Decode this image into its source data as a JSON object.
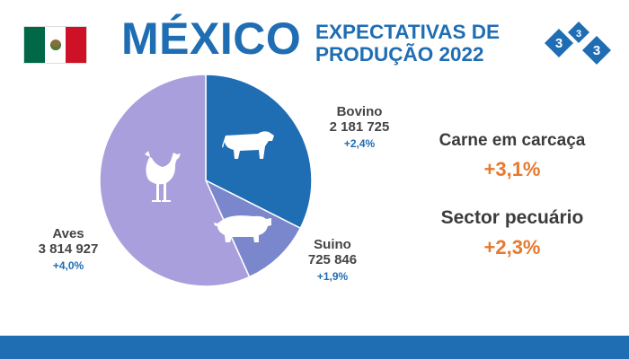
{
  "header": {
    "country": "MÉXICO",
    "subtitle_line1": "EXPECTATIVAS DE",
    "subtitle_line2": "PRODUÇÃO 2022",
    "logo_digits": [
      "3",
      "3",
      "3"
    ]
  },
  "chart_data": {
    "type": "pie",
    "slices": [
      {
        "name": "Bovino",
        "value": 2181725,
        "value_label": "2 181 725",
        "change": "+2,4%",
        "color": "#1f6db3",
        "icon": "cow-icon"
      },
      {
        "name": "Suino",
        "value": 725846,
        "value_label": "725 846",
        "change": "+1,9%",
        "color": "#7b87cc",
        "icon": "pig-icon"
      },
      {
        "name": "Aves",
        "value": 3814927,
        "value_label": "3 814 927",
        "change": "+4,0%",
        "color": "#a99fdc",
        "icon": "chicken-icon"
      }
    ]
  },
  "kpis": [
    {
      "title": "Carne em carcaça",
      "value": "+3,1%"
    },
    {
      "title": "Sector pecuário",
      "value": "+2,3%"
    }
  ],
  "colors": {
    "brand": "#1f6db3",
    "accent": "#e8782c"
  }
}
